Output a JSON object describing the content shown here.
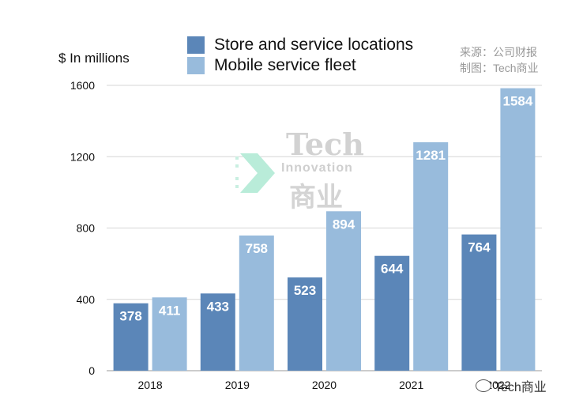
{
  "chart_data": {
    "type": "bar",
    "ylabel": "$ In millions",
    "categories": [
      "2018",
      "2019",
      "2020",
      "2021",
      "2022"
    ],
    "ylim": [
      0,
      1600
    ],
    "yticks": [
      0,
      400,
      800,
      1200,
      1600
    ],
    "grid": true,
    "legend_position": "top",
    "series": [
      {
        "name": "Store and service locations",
        "color": "#5b86b8",
        "values": [
          378,
          433,
          523,
          644,
          764
        ]
      },
      {
        "name": "Mobile service fleet",
        "color": "#98bbdc",
        "values": [
          411,
          758,
          894,
          1281,
          1584
        ]
      }
    ]
  },
  "source": {
    "line1": "来源：公司财报",
    "line2": "制图：Tech商业"
  },
  "watermark": {
    "tech": "Tech",
    "innovation": "Innovation",
    "cn": "商业"
  },
  "footer": {
    "text": "Tech商业"
  }
}
